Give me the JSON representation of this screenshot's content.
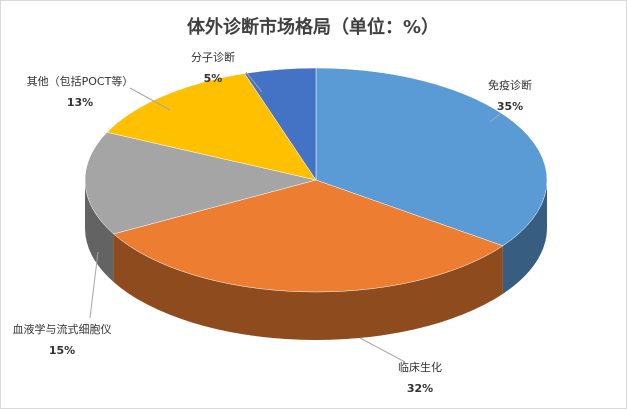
{
  "chart_data": {
    "type": "pie3d",
    "title": "体外诊断市场格局（单位：%）",
    "categories": [
      "免疫诊断",
      "临床生化",
      "血液学与流式细胞仪",
      "其他（包括POCT等）",
      "分子诊断"
    ],
    "values": [
      35,
      32,
      15,
      13,
      5
    ],
    "value_labels": [
      "35%",
      "32%",
      "15%",
      "13%",
      "5%"
    ],
    "colors": [
      "#5b9bd5",
      "#ed7d31",
      "#a5a5a5",
      "#ffc000",
      "#4472c4"
    ]
  }
}
